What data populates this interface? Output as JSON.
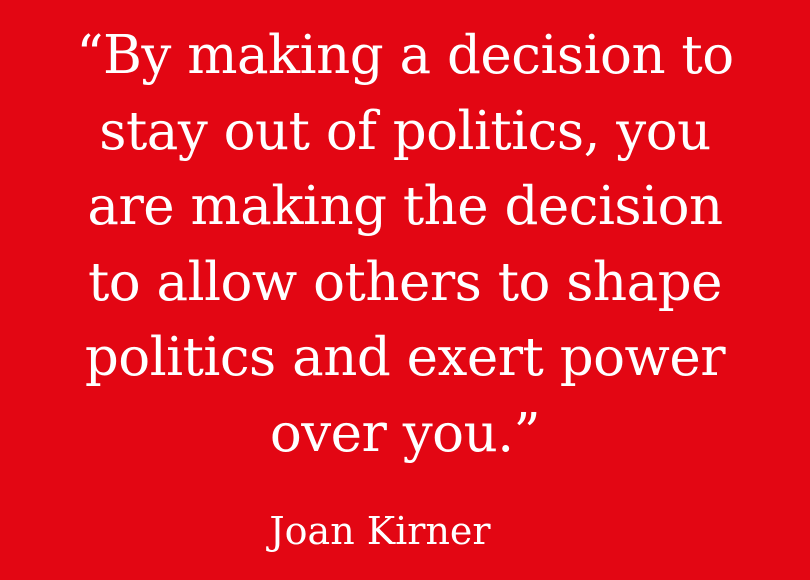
{
  "quote": {
    "lines": [
      "“By making a decision to",
      "stay out of politics, you",
      "are making the decision",
      "to allow others to shape",
      "politics and exert power",
      "over you.”"
    ]
  },
  "author": "Joan Kirner",
  "colors": {
    "background": "#e30613",
    "text": "#ffffff"
  }
}
